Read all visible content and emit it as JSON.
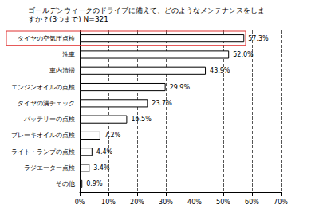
{
  "chart_data": {
    "type": "bar",
    "title": "ゴールデンウィークのドライブに備えて、どのようなメンテナンスをしますか？(3つまで) N=321",
    "orientation": "horizontal",
    "categories": [
      "タイヤの空気圧点検",
      "洗車",
      "車内清掃",
      "エンジンオイルの点検",
      "タイヤの溝チェック",
      "バッテリーの点検",
      "ブレーキオイルの点検",
      "ライト・ランプの点検",
      "ラジエーター点検",
      "その他"
    ],
    "values": [
      57.3,
      52.0,
      43.9,
      29.9,
      23.7,
      16.5,
      7.2,
      4.4,
      3.4,
      0.9
    ],
    "value_labels": [
      "57.3%",
      "52.0%",
      "43.9%",
      "29.9%",
      "23.7%",
      "16.5%",
      "7.2%",
      "4.4%",
      "3.4%",
      "0.9%"
    ],
    "color": "#ffffff",
    "xlim": [
      0,
      70
    ],
    "xticks": [
      {
        "value": 0,
        "label": "0%"
      },
      {
        "value": 10,
        "label": "10%"
      },
      {
        "value": 20,
        "label": "20%"
      },
      {
        "value": 30,
        "label": "30%"
      },
      {
        "value": 40,
        "label": "40%"
      },
      {
        "value": 50,
        "label": "50%"
      },
      {
        "value": 60,
        "label": "60%"
      },
      {
        "value": 70,
        "label": "70%"
      }
    ],
    "grid": true,
    "data_labels": true
  }
}
